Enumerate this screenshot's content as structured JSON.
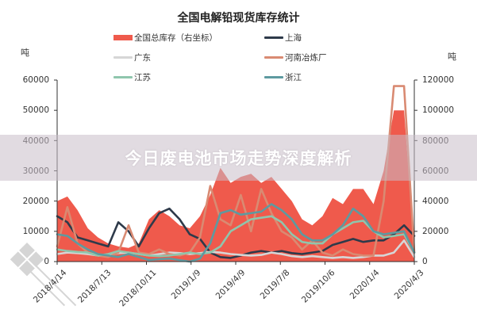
{
  "chart_data": {
    "type": "line",
    "title": "全国电解铅现货库存统计",
    "ylabel": "吨",
    "y2label": "吨",
    "ylim": [
      0,
      60000
    ],
    "y2lim": [
      0,
      120000
    ],
    "yticks": [
      0,
      10000,
      20000,
      30000,
      40000,
      50000,
      60000
    ],
    "y2ticks": [
      0,
      20000,
      40000,
      60000,
      80000,
      100000,
      120000
    ],
    "xticks": [
      "2018/4/14",
      "2018/7/13",
      "2018/10/11",
      "2019/1/9",
      "2019/4/9",
      "2019/7/8",
      "2019/10/6",
      "2020/1/4",
      "2020/4/3"
    ],
    "grid": false,
    "legend_position": "top",
    "x": [
      "2018/4/14",
      "2018/5/5",
      "2018/5/26",
      "2018/6/16",
      "2018/7/7",
      "2018/7/28",
      "2018/8/18",
      "2018/9/8",
      "2018/9/29",
      "2018/10/20",
      "2018/11/10",
      "2018/12/1",
      "2018/12/22",
      "2019/1/12",
      "2019/2/2",
      "2019/2/23",
      "2019/3/16",
      "2019/4/6",
      "2019/4/27",
      "2019/5/18",
      "2019/6/8",
      "2019/6/29",
      "2019/7/20",
      "2019/8/10",
      "2019/8/31",
      "2019/9/21",
      "2019/10/12",
      "2019/11/2",
      "2019/11/23",
      "2019/12/14",
      "2020/1/4",
      "2020/1/25",
      "2020/2/15",
      "2020/3/7",
      "2020/3/28",
      "2020/4/3"
    ],
    "series": [
      {
        "name": "全国总库存（右坐标）",
        "type": "area",
        "axis": "right",
        "color": "#ef5a4c",
        "values": [
          40000,
          43000,
          34000,
          22000,
          16000,
          12000,
          10000,
          9000,
          12000,
          28000,
          34000,
          30000,
          24000,
          22000,
          30000,
          44000,
          62000,
          52000,
          56000,
          58000,
          52000,
          56000,
          48000,
          40000,
          28000,
          24000,
          30000,
          42000,
          38000,
          48000,
          48000,
          38000,
          60000,
          100000,
          100000,
          10000
        ]
      },
      {
        "name": "上海",
        "type": "line",
        "axis": "left",
        "color": "#2e3a4a",
        "values": [
          15000,
          13000,
          8000,
          7000,
          6000,
          5000,
          13000,
          10000,
          5000,
          11000,
          16000,
          17500,
          14000,
          9000,
          7500,
          3000,
          1500,
          1200,
          2000,
          3000,
          3500,
          3000,
          3500,
          2800,
          2500,
          3000,
          3500,
          5500,
          6500,
          7500,
          6500,
          7000,
          7000,
          9000,
          12000,
          8500
        ]
      },
      {
        "name": "广东",
        "type": "line",
        "axis": "left",
        "color": "#d6d6d6",
        "values": [
          2500,
          3000,
          2800,
          2500,
          2000,
          2000,
          2800,
          3000,
          2500,
          2000,
          2500,
          3000,
          2800,
          2500,
          2800,
          3200,
          3000,
          2500,
          2200,
          2000,
          2200,
          3000,
          2500,
          1800,
          1500,
          1800,
          1500,
          1200,
          1500,
          1200,
          1500,
          2000,
          2000,
          3000,
          7000,
          1500
        ]
      },
      {
        "name": "河南冶炼厂",
        "type": "line",
        "axis": "left",
        "color": "#d98a72",
        "values": [
          5000,
          18000,
          6000,
          3000,
          2000,
          1500,
          3000,
          12000,
          3000,
          2500,
          4000,
          2500,
          2000,
          3000,
          8000,
          25000,
          14000,
          12000,
          22000,
          10000,
          24000,
          16000,
          10000,
          8000,
          4000,
          7000,
          3000,
          2000,
          4000,
          2500,
          2000,
          2000,
          20000,
          58000,
          58000,
          3000
        ]
      },
      {
        "name": "江苏",
        "type": "line",
        "axis": "left",
        "color": "#8fc6ad",
        "values": [
          4000,
          3500,
          3200,
          3000,
          2000,
          2500,
          3500,
          3000,
          2500,
          2000,
          1800,
          2000,
          2500,
          3000,
          2500,
          3000,
          5000,
          10000,
          12000,
          14000,
          14500,
          15000,
          13000,
          9000,
          6500,
          6000,
          6000,
          9000,
          11000,
          13000,
          13500,
          10000,
          8000,
          8500,
          9000,
          3000
        ]
      },
      {
        "name": "浙江",
        "type": "line",
        "axis": "left",
        "color": "#5d9aa0",
        "values": [
          9000,
          8500,
          6000,
          4000,
          2500,
          2000,
          1500,
          2500,
          1500,
          500,
          800,
          1000,
          500,
          0,
          1000,
          6000,
          16000,
          17000,
          15500,
          16000,
          16500,
          19000,
          17000,
          14000,
          9000,
          7000,
          7000,
          9000,
          12000,
          17500,
          15000,
          10000,
          9000,
          9500,
          10000,
          3000
        ]
      }
    ]
  },
  "header": {
    "title": "全国电解铅现货库存统计"
  },
  "legend": {
    "items": [
      {
        "label": "全国总库存（右坐标）",
        "color": "#ef5a4c",
        "kind": "area"
      },
      {
        "label": "上海",
        "color": "#2e3a4a",
        "kind": "line"
      },
      {
        "label": "广东",
        "color": "#d6d6d6",
        "kind": "line"
      },
      {
        "label": "河南冶炼厂",
        "color": "#d98a72",
        "kind": "line"
      },
      {
        "label": "江苏",
        "color": "#8fc6ad",
        "kind": "line"
      },
      {
        "label": "浙江",
        "color": "#5d9aa0",
        "kind": "line"
      }
    ]
  },
  "axes": {
    "left_unit": "吨",
    "right_unit": "吨",
    "left_ticks": [
      "0",
      "10000",
      "20000",
      "30000",
      "40000",
      "50000",
      "60000"
    ],
    "right_ticks": [
      "0",
      "20000",
      "40000",
      "60000",
      "80000",
      "100000",
      "120000"
    ],
    "x_ticks": [
      "2018/4/14",
      "2018/7/13",
      "2018/10/11",
      "2019/1/9",
      "2019/4/9",
      "2019/7/8",
      "2019/10/6",
      "2020/1/4",
      "2020/4/3"
    ]
  },
  "overlay": {
    "banner_text": "今日废电池市场走势深度解析"
  }
}
